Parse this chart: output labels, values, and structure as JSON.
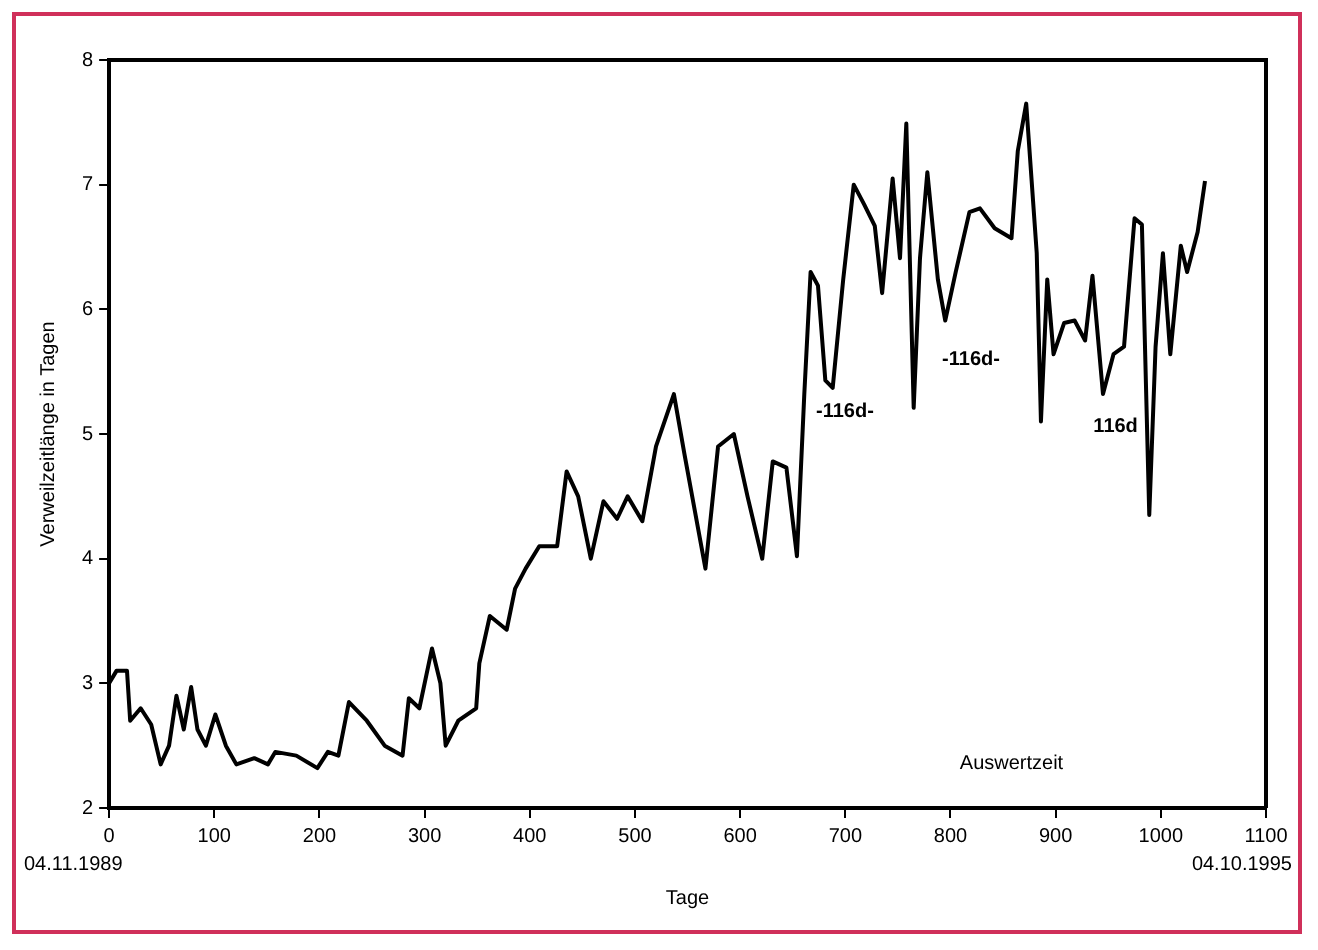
{
  "chart_data": {
    "type": "line",
    "xlabel": "Tage",
    "ylabel": "Verweilzeitlänge in Tagen",
    "x": [
      0,
      7,
      17,
      20,
      30,
      40,
      49,
      57,
      64,
      71,
      78,
      84,
      92,
      101,
      111,
      121,
      138,
      151,
      158,
      178,
      198,
      208,
      218,
      228,
      245,
      262,
      279,
      285,
      295,
      307,
      315,
      320,
      332,
      349,
      352,
      362,
      378,
      386,
      396,
      409,
      426,
      435,
      446,
      458,
      470,
      483,
      493,
      507,
      520,
      537,
      547,
      567,
      579,
      594,
      607,
      621,
      631,
      644,
      654,
      661,
      667,
      674,
      681,
      688,
      698,
      708,
      718,
      728,
      735,
      745,
      752,
      758,
      765,
      771,
      778,
      788,
      795,
      805,
      818,
      828,
      842,
      858,
      864,
      872,
      882,
      886,
      892,
      898,
      908,
      918,
      928,
      935,
      945,
      955,
      965,
      975,
      982,
      989,
      995,
      1002,
      1009,
      1019,
      1025,
      1035,
      1042
    ],
    "series": [
      {
        "color": "#000000",
        "values": [
          3.0,
          3.1,
          3.1,
          2.7,
          2.8,
          2.67,
          2.35,
          2.5,
          2.9,
          2.63,
          2.97,
          2.63,
          2.5,
          2.75,
          2.5,
          2.35,
          2.4,
          2.35,
          2.45,
          2.42,
          2.32,
          2.45,
          2.42,
          2.85,
          2.7,
          2.5,
          2.42,
          2.88,
          2.8,
          3.28,
          3.0,
          2.5,
          2.7,
          2.8,
          3.16,
          3.54,
          3.43,
          3.76,
          3.92,
          4.1,
          4.1,
          4.7,
          4.5,
          4.0,
          4.46,
          4.32,
          4.5,
          4.3,
          4.9,
          5.32,
          4.84,
          3.92,
          4.9,
          5.0,
          4.5,
          4.0,
          4.78,
          4.73,
          4.02,
          5.32,
          6.3,
          6.19,
          5.43,
          5.37,
          6.24,
          7.0,
          6.84,
          6.67,
          6.13,
          7.05,
          6.41,
          7.49,
          5.21,
          6.41,
          7.1,
          6.24,
          5.91,
          6.3,
          6.78,
          6.81,
          6.65,
          6.57,
          7.27,
          7.65,
          6.45,
          5.1,
          6.24,
          5.64,
          5.89,
          5.91,
          5.75,
          6.27,
          5.32,
          5.64,
          5.7,
          6.73,
          6.68,
          4.35,
          5.7,
          6.45,
          5.64,
          6.51,
          6.3,
          6.62,
          7.03
        ]
      }
    ],
    "xlim": [
      0,
      1100
    ],
    "xticks": [
      0,
      100,
      200,
      300,
      400,
      500,
      600,
      700,
      800,
      900,
      1000,
      1100
    ],
    "ylim": [
      2,
      8
    ],
    "yticks": [
      2,
      3,
      4,
      5,
      6,
      7,
      8
    ],
    "marker": "none",
    "legend": false,
    "grid": false,
    "annotations": [
      "04.11.1989",
      "04.10.1995",
      "Auswertzeit",
      "-116d-",
      "-116d-",
      "116d"
    ]
  }
}
